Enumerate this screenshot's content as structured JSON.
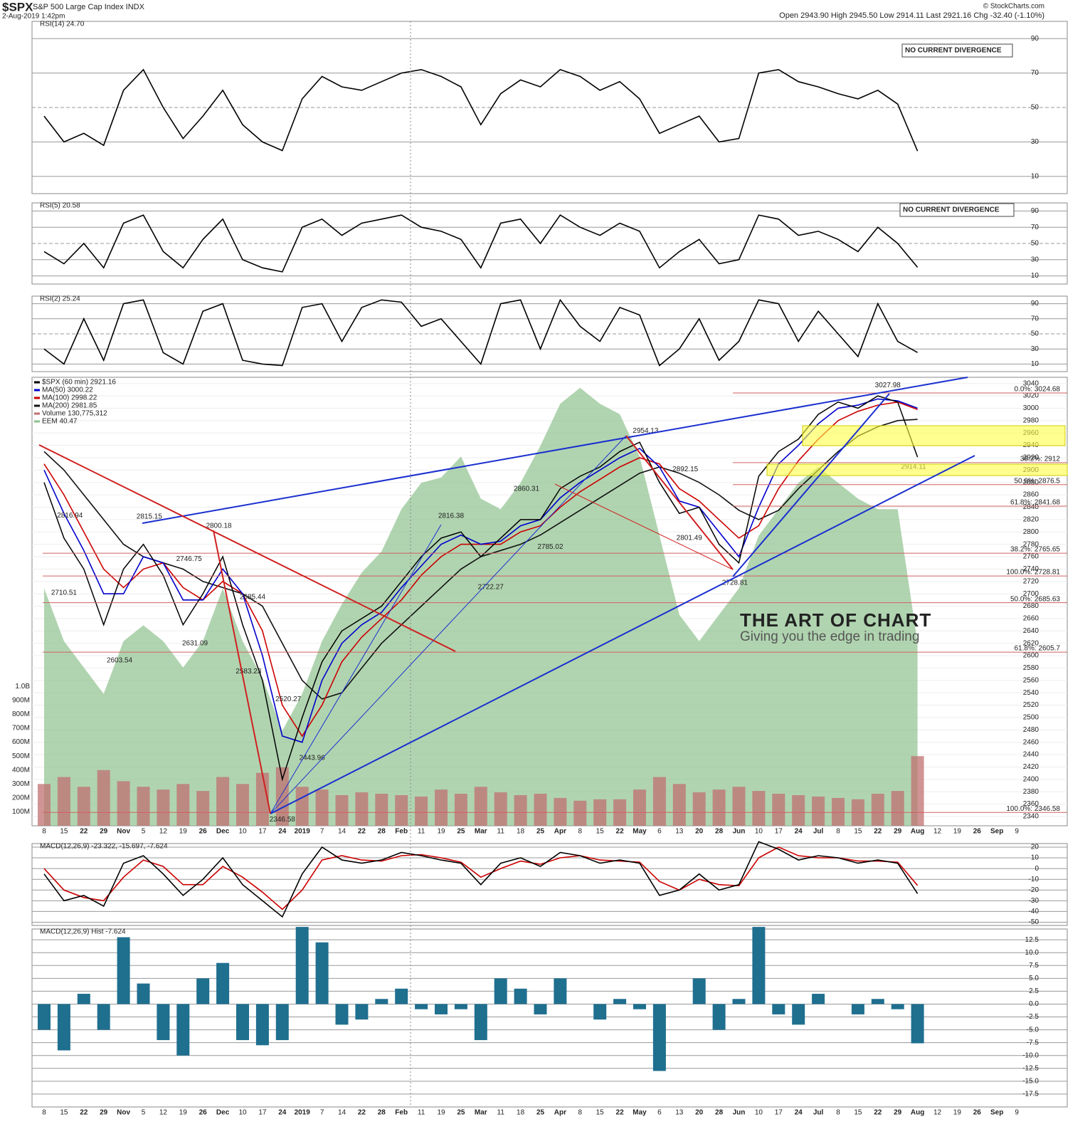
{
  "header": {
    "symbol": "$SPX",
    "name": "S&P 500 Large Cap Index INDX",
    "date": "2-Aug-2019 1:42pm",
    "quote": "Open 2943.90 High 2945.50 Low 2914.11 Last 2921.16 Chg -32.40 (-1.10%)",
    "source": "© StockCharts.com"
  },
  "chart_data": [
    {
      "type": "line",
      "title": "RSI(14) 24.70",
      "ylim": [
        0,
        100
      ],
      "yticks": [
        90,
        70,
        50,
        30,
        10
      ],
      "grid": true,
      "annotations": [
        "NO CURRENT DIVERGENCE"
      ],
      "series": [
        {
          "name": "RSI(14)",
          "color": "#000000",
          "values": [
            45,
            30,
            35,
            28,
            60,
            72,
            50,
            32,
            45,
            60,
            40,
            30,
            25,
            55,
            68,
            62,
            60,
            65,
            70,
            72,
            68,
            62,
            40,
            58,
            66,
            62,
            72,
            68,
            60,
            65,
            55,
            35,
            40,
            45,
            30,
            32,
            70,
            72,
            65,
            62,
            58,
            55,
            60,
            52,
            24.7,
            null,
            null,
            null,
            null,
            null
          ]
        }
      ]
    },
    {
      "type": "line",
      "title": "RSI(5) 20.58",
      "ylim": [
        0,
        100
      ],
      "yticks": [
        90,
        70,
        50,
        30,
        10
      ],
      "grid": true,
      "annotations": [
        "NO CURRENT DIVERGENCE"
      ],
      "series": [
        {
          "name": "RSI(5)",
          "color": "#000000",
          "values": [
            40,
            25,
            50,
            20,
            75,
            85,
            40,
            20,
            55,
            80,
            30,
            20,
            15,
            70,
            80,
            60,
            75,
            80,
            85,
            70,
            65,
            55,
            20,
            75,
            80,
            50,
            85,
            70,
            60,
            75,
            65,
            20,
            40,
            55,
            25,
            30,
            85,
            80,
            60,
            65,
            55,
            40,
            70,
            50,
            20.58,
            null,
            null,
            null,
            null,
            null
          ]
        }
      ]
    },
    {
      "type": "line",
      "title": "RSI(2) 25.24",
      "ylim": [
        0,
        100
      ],
      "yticks": [
        90,
        70,
        50,
        30,
        10
      ],
      "grid": true,
      "series": [
        {
          "name": "RSI(2)",
          "color": "#000000",
          "values": [
            30,
            10,
            70,
            15,
            90,
            95,
            25,
            10,
            80,
            90,
            15,
            10,
            8,
            85,
            90,
            40,
            85,
            95,
            92,
            60,
            70,
            40,
            10,
            90,
            95,
            30,
            95,
            60,
            40,
            85,
            75,
            8,
            30,
            70,
            15,
            40,
            95,
            90,
            40,
            80,
            50,
            20,
            90,
            40,
            25.24,
            null,
            null,
            null,
            null,
            null
          ]
        }
      ]
    },
    {
      "type": "line",
      "ylim": [
        2325,
        3050
      ],
      "y2lim": [
        0,
        3220000000
      ],
      "y3lim": [
        37,
        45.5
      ],
      "grid": true,
      "categories": [
        "8",
        "15",
        "22",
        "29",
        "Nov",
        "5",
        "12",
        "19",
        "26",
        "Dec",
        "10",
        "17",
        "24",
        "2019",
        "7",
        "14",
        "22",
        "28",
        "Feb",
        "11",
        "19",
        "25",
        "Mar",
        "11",
        "18",
        "25",
        "Apr",
        "8",
        "15",
        "22",
        "May",
        "6",
        "13",
        "20",
        "28",
        "Jun",
        "10",
        "17",
        "24",
        "Jul",
        "8",
        "15",
        "22",
        "29",
        "Aug",
        "12",
        "19",
        "26",
        "Sep",
        "9"
      ],
      "yticks": [
        2340,
        2360,
        2380,
        2400,
        2420,
        2440,
        2460,
        2480,
        2500,
        2520,
        2540,
        2560,
        2580,
        2600,
        2620,
        2640,
        2660,
        2680,
        2700,
        2720,
        2740,
        2760,
        2780,
        2800,
        2820,
        2840,
        2860,
        2880,
        2900,
        2920,
        2940,
        2960,
        2980,
        3000,
        3020,
        3040
      ],
      "y2ticks": [
        {
          "value": 100000000,
          "label": "100M"
        },
        {
          "value": 200000000,
          "label": "200M"
        },
        {
          "value": 300000000,
          "label": "300M"
        },
        {
          "value": 400000000,
          "label": "400M"
        },
        {
          "value": 500000000,
          "label": "500M"
        },
        {
          "value": 600000000,
          "label": "600M"
        },
        {
          "value": 700000000,
          "label": "700M"
        },
        {
          "value": 800000000,
          "label": "800M"
        },
        {
          "value": 900000000,
          "label": "900M"
        },
        {
          "value": 1000000000,
          "label": "1.0B"
        }
      ],
      "levels": [
        {
          "value": 3024.68,
          "label": "0.0%: 3024.68"
        },
        {
          "value": 2912,
          "label": "38.2%: 2912"
        },
        {
          "value": 2876.5,
          "label": "50.0%: 2876.5"
        },
        {
          "value": 2841.68,
          "label": "61.8%: 2841.68"
        },
        {
          "value": 2765.65,
          "label": "38.2%: 2765.65"
        },
        {
          "value": 2728.81,
          "label": "100.0%: 2728.81"
        },
        {
          "value": 2685.63,
          "label": "50.0%: 2685.63"
        },
        {
          "value": 2605.7,
          "label": "61.8%: 2605.7"
        },
        {
          "value": 2346.58,
          "label": "100.0%: 2346.58"
        }
      ],
      "point_labels": [
        2816.94,
        2710.51,
        2815.15,
        2603.54,
        2746.75,
        2800.18,
        2631.09,
        2685.44,
        2583.23,
        2520.27,
        2443.96,
        2346.58,
        2816.38,
        2860.31,
        2722.27,
        2785.02,
        2954.13,
        2892.15,
        2801.49,
        2728.81,
        3027.98,
        2914.11
      ],
      "annotations": [
        "THE ART OF CHART",
        "Giving you the edge in trading"
      ],
      "series": [
        {
          "name": "$SPX (60 min) 2921.16",
          "color": "#000000",
          "type": "line",
          "values": [
            2880,
            2790,
            2740,
            2650,
            2740,
            2780,
            2730,
            2650,
            2700,
            2760,
            2650,
            2560,
            2400,
            2500,
            2590,
            2640,
            2660,
            2680,
            2720,
            2760,
            2790,
            2800,
            2760,
            2790,
            2820,
            2820,
            2870,
            2890,
            2905,
            2930,
            2945,
            2880,
            2830,
            2840,
            2780,
            2750,
            2890,
            2930,
            2950,
            2990,
            3010,
            3000,
            3020,
            3010,
            2921,
            null,
            null,
            null,
            null,
            null
          ]
        },
        {
          "name": "MA(50) 3000.22",
          "color": "#0000cc",
          "type": "line",
          "values": [
            2900,
            2830,
            2770,
            2700,
            2700,
            2760,
            2750,
            2690,
            2690,
            2740,
            2700,
            2600,
            2470,
            2460,
            2560,
            2620,
            2650,
            2670,
            2710,
            2745,
            2780,
            2795,
            2780,
            2785,
            2810,
            2820,
            2855,
            2880,
            2900,
            2920,
            2935,
            2905,
            2850,
            2840,
            2800,
            2760,
            2840,
            2910,
            2940,
            2975,
            3000,
            3005,
            3015,
            3012,
            3000,
            null,
            null,
            null,
            null,
            null
          ]
        },
        {
          "name": "MA(100) 2998.22",
          "color": "#cc0000",
          "type": "line",
          "values": [
            2910,
            2860,
            2800,
            2740,
            2710,
            2740,
            2750,
            2710,
            2690,
            2720,
            2700,
            2640,
            2520,
            2470,
            2520,
            2590,
            2630,
            2660,
            2690,
            2730,
            2760,
            2780,
            2780,
            2780,
            2800,
            2810,
            2840,
            2865,
            2885,
            2905,
            2920,
            2910,
            2870,
            2850,
            2820,
            2790,
            2810,
            2870,
            2915,
            2950,
            2980,
            2995,
            3005,
            3010,
            2998,
            null,
            null,
            null,
            null,
            null
          ]
        },
        {
          "name": "MA(200) 2981.85",
          "color": "#111111",
          "type": "line",
          "values": [
            2930,
            2900,
            2860,
            2820,
            2780,
            2760,
            2750,
            2740,
            2720,
            2710,
            2700,
            2680,
            2620,
            2560,
            2530,
            2540,
            2580,
            2620,
            2650,
            2680,
            2710,
            2740,
            2760,
            2770,
            2780,
            2795,
            2815,
            2835,
            2855,
            2875,
            2895,
            2905,
            2895,
            2880,
            2860,
            2835,
            2820,
            2835,
            2870,
            2900,
            2930,
            2955,
            2970,
            2980,
            2982,
            null,
            null,
            null,
            null,
            null
          ]
        },
        {
          "name": "Volume 130,775,312",
          "color": "#c07070",
          "type": "bar",
          "axis": "y2",
          "values": [
            300000000,
            350000000,
            280000000,
            400000000,
            320000000,
            280000000,
            260000000,
            300000000,
            250000000,
            350000000,
            300000000,
            380000000,
            420000000,
            280000000,
            260000000,
            220000000,
            240000000,
            230000000,
            220000000,
            210000000,
            260000000,
            230000000,
            280000000,
            240000000,
            220000000,
            230000000,
            200000000,
            180000000,
            190000000,
            190000000,
            260000000,
            350000000,
            300000000,
            240000000,
            260000000,
            280000000,
            250000000,
            230000000,
            220000000,
            210000000,
            200000000,
            190000000,
            230000000,
            250000000,
            500000000,
            null,
            null,
            null,
            null,
            null
          ]
        },
        {
          "name": "EEM 40.47",
          "color": "#8fc28f",
          "type": "area",
          "axis": "y3",
          "values": [
            41.5,
            40.5,
            40,
            39.5,
            40.5,
            40.8,
            40.5,
            40,
            40.5,
            41.5,
            40.5,
            39.8,
            38.8,
            39.5,
            40.5,
            41.2,
            41.8,
            42.2,
            43,
            43.5,
            43.6,
            44,
            43.2,
            43,
            43.5,
            44.2,
            45,
            45.3,
            45,
            44.8,
            44,
            42.5,
            41,
            40.5,
            41,
            41.5,
            42.5,
            43,
            43.5,
            43.8,
            43.5,
            43.2,
            43,
            43,
            40.47,
            null,
            null,
            null,
            null,
            null
          ]
        }
      ]
    },
    {
      "type": "line",
      "title": "MACD(12,26,9) -23.322, -15.697, -7.624",
      "ylim": [
        -53,
        23.3
      ],
      "yticks": [
        20,
        10,
        0,
        -10,
        -20,
        -30,
        -40,
        -50
      ],
      "grid": true,
      "series": [
        {
          "name": "MACD",
          "color": "#000000",
          "values": [
            -5,
            -30,
            -25,
            -35,
            5,
            12,
            -5,
            -25,
            -10,
            10,
            -15,
            -30,
            -45,
            -5,
            20,
            8,
            5,
            8,
            15,
            12,
            8,
            5,
            -15,
            5,
            10,
            2,
            15,
            12,
            5,
            8,
            5,
            -25,
            -20,
            -5,
            -20,
            -15,
            25,
            18,
            8,
            12,
            10,
            5,
            8,
            5,
            -23.322,
            null,
            null,
            null,
            null,
            null
          ]
        },
        {
          "name": "Signal",
          "color": "#cc0000",
          "values": [
            0,
            -20,
            -27,
            -30,
            -8,
            8,
            2,
            -15,
            -15,
            2,
            -8,
            -22,
            -38,
            -20,
            8,
            12,
            8,
            7,
            12,
            13,
            10,
            6,
            -8,
            0,
            7,
            4,
            10,
            12,
            8,
            7,
            6,
            -12,
            -20,
            -10,
            -15,
            -16,
            10,
            20,
            12,
            10,
            10,
            7,
            7,
            6,
            -15.697,
            null,
            null,
            null,
            null,
            null
          ]
        }
      ]
    },
    {
      "type": "bar",
      "title": "MACD(12,26,9) Hist -7.624",
      "ylim": [
        -20,
        14.6
      ],
      "grid": true,
      "categories": [
        "8",
        "15",
        "22",
        "29",
        "Nov",
        "5",
        "12",
        "19",
        "26",
        "Dec",
        "10",
        "17",
        "24",
        "2019",
        "7",
        "14",
        "22",
        "28",
        "Feb",
        "11",
        "19",
        "25",
        "Mar",
        "11",
        "18",
        "25",
        "Apr",
        "8",
        "15",
        "22",
        "May",
        "6",
        "13",
        "20",
        "28",
        "Jun",
        "10",
        "17",
        "24",
        "Jul",
        "8",
        "15",
        "22",
        "29",
        "Aug",
        "12",
        "19",
        "26",
        "Sep",
        "9"
      ],
      "yticks": [
        12.5,
        {
          "value": 10,
          "label": "10.0"
        },
        7.5,
        {
          "value": 5,
          "label": "5.0"
        },
        2.5,
        {
          "value": 0,
          "label": "0.0"
        },
        -2.5,
        {
          "value": -5,
          "label": "-5.0"
        },
        -7.5,
        {
          "value": -10,
          "label": "-10.0"
        },
        -12.5,
        {
          "value": -15,
          "label": "-15.0"
        },
        -17.5
      ],
      "series": [
        {
          "name": "Hist",
          "color": "#1f6f8f",
          "values": [
            -5,
            -9,
            2,
            -5,
            13,
            4,
            -7,
            -10,
            5,
            8,
            -7,
            -8,
            -7,
            15,
            12,
            -4,
            -3,
            1,
            3,
            -1,
            -2,
            -1,
            -7,
            5,
            3,
            -2,
            5,
            0,
            -3,
            1,
            -1,
            -13,
            0,
            5,
            -5,
            1,
            15,
            -2,
            -4,
            2,
            0,
            -2,
            1,
            -1,
            -7.624,
            null,
            null,
            null,
            null,
            null
          ]
        }
      ]
    }
  ]
}
